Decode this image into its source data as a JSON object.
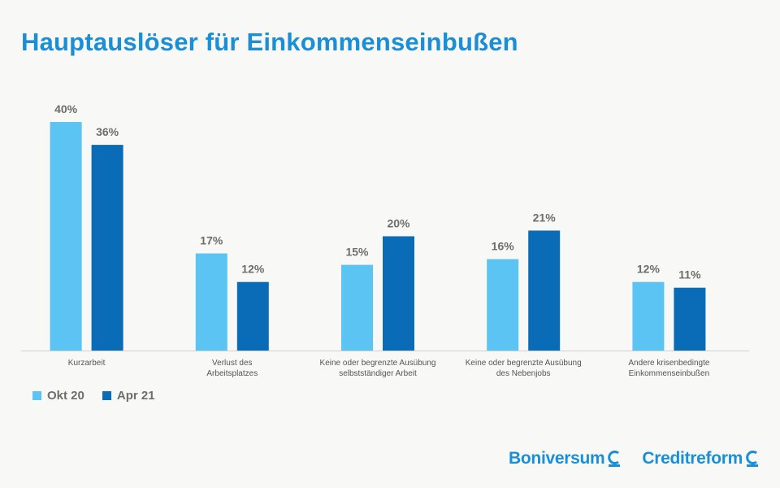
{
  "title": "Hauptauslöser für Einkommenseinbußen",
  "colors": {
    "title": "#1a8fd6",
    "okt": "#5bc4f2",
    "apr": "#0a6cb6",
    "axis": "#cfcfcf",
    "text": "#6d6d6d"
  },
  "chart_data": {
    "type": "bar",
    "categories": [
      [
        "Kurzarbeit"
      ],
      [
        "Verlust des",
        "Arbeitsplatzes"
      ],
      [
        "Keine oder begrenzte Ausübung",
        "selbstständiger Arbeit"
      ],
      [
        "Keine oder begrenzte Ausübung",
        "des Nebenjobs"
      ],
      [
        "Andere krisenbedingte",
        "Einkommenseinbußen"
      ]
    ],
    "series": [
      {
        "name": "Okt 20",
        "values": [
          40,
          17,
          15,
          16,
          12
        ],
        "labels": [
          "40%",
          "17%",
          "15%",
          "16%",
          "12%"
        ]
      },
      {
        "name": "Apr 21",
        "values": [
          36,
          12,
          20,
          21,
          11
        ],
        "labels": [
          "36%",
          "12%",
          "20%",
          "21%",
          "11%"
        ]
      }
    ],
    "ylim": [
      0,
      40
    ],
    "grid": false,
    "legend": "bottom-left"
  },
  "logos": {
    "boniversum": "Boniversum",
    "creditreform": "Creditreform"
  }
}
